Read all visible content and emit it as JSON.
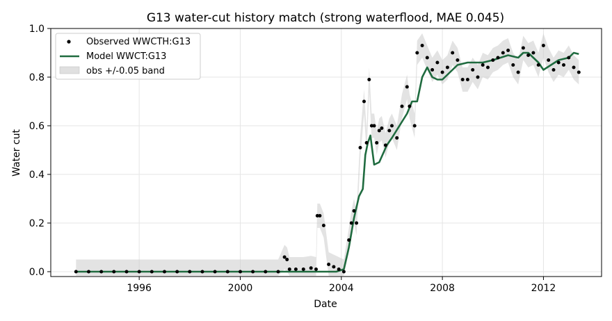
{
  "chart_data": {
    "type": "line",
    "title": "G13  water-cut history match  (strong waterflood, MAE 0.045)",
    "xlabel": "Date",
    "ylabel": "Water cut",
    "xlim": [
      1992.5,
      2014.3
    ],
    "ylim": [
      -0.02,
      1.0
    ],
    "x_ticks": [
      "1996",
      "2000",
      "2004",
      "2008",
      "2012"
    ],
    "y_ticks": [
      "0.0",
      "0.2",
      "0.4",
      "0.6",
      "0.8",
      "1.0"
    ],
    "grid": true,
    "legend": {
      "placement": "top-left",
      "entries": [
        "Observed WWCTH:G13",
        "Model WWCT:G13",
        "obs +/-0.05 band"
      ]
    },
    "colors": {
      "observed": "#000000",
      "model": "#1f6b3f",
      "band": "#cccccc"
    },
    "band_halfwidth": 0.05,
    "series": [
      {
        "name": "Observed WWCTH:G13",
        "style": "scatter",
        "x": [
          1993.5,
          1994.0,
          1994.5,
          1995.0,
          1995.5,
          1996.0,
          1996.5,
          1997.0,
          1997.5,
          1998.0,
          1998.5,
          1999.0,
          1999.5,
          2000.0,
          2000.5,
          2001.0,
          2001.5,
          2001.75,
          2001.85,
          2001.95,
          2002.2,
          2002.5,
          2002.8,
          2003.0,
          2003.05,
          2003.15,
          2003.3,
          2003.5,
          2003.7,
          2003.9,
          2004.1,
          2004.3,
          2004.4,
          2004.5,
          2004.6,
          2004.75,
          2004.9,
          2005.0,
          2005.1,
          2005.2,
          2005.3,
          2005.4,
          2005.5,
          2005.6,
          2005.75,
          2005.9,
          2006.0,
          2006.2,
          2006.4,
          2006.6,
          2006.7,
          2006.9,
          2007.0,
          2007.2,
          2007.4,
          2007.6,
          2007.8,
          2008.0,
          2008.2,
          2008.4,
          2008.6,
          2008.8,
          2009.0,
          2009.2,
          2009.4,
          2009.6,
          2009.8,
          2010.0,
          2010.2,
          2010.4,
          2010.6,
          2010.8,
          2011.0,
          2011.2,
          2011.4,
          2011.6,
          2011.8,
          2012.0,
          2012.2,
          2012.4,
          2012.6,
          2012.8,
          2013.0,
          2013.2,
          2013.4
        ],
        "y": [
          0.0,
          0.0,
          0.0,
          0.0,
          0.0,
          0.0,
          0.0,
          0.0,
          0.0,
          0.0,
          0.0,
          0.0,
          0.0,
          0.0,
          0.0,
          0.0,
          0.0,
          0.06,
          0.05,
          0.01,
          0.01,
          0.01,
          0.015,
          0.01,
          0.23,
          0.23,
          0.19,
          0.03,
          0.02,
          0.01,
          0.0,
          0.13,
          0.2,
          0.25,
          0.2,
          0.51,
          0.7,
          0.53,
          0.79,
          0.6,
          0.6,
          0.53,
          0.58,
          0.59,
          0.52,
          0.58,
          0.6,
          0.55,
          0.68,
          0.76,
          0.68,
          0.6,
          0.9,
          0.93,
          0.88,
          0.83,
          0.86,
          0.82,
          0.84,
          0.9,
          0.87,
          0.79,
          0.79,
          0.83,
          0.8,
          0.85,
          0.84,
          0.87,
          0.88,
          0.9,
          0.91,
          0.85,
          0.82,
          0.92,
          0.89,
          0.9,
          0.85,
          0.93,
          0.87,
          0.83,
          0.86,
          0.85,
          0.88,
          0.84,
          0.82
        ]
      },
      {
        "name": "Model WWCT:G13",
        "style": "line",
        "x": [
          1993.5,
          2001.5,
          2003.8,
          2004.1,
          2004.3,
          2004.5,
          2004.7,
          2004.85,
          2004.95,
          2005.05,
          2005.15,
          2005.3,
          2005.5,
          2005.8,
          2006.0,
          2006.3,
          2006.6,
          2006.8,
          2007.0,
          2007.2,
          2007.4,
          2007.6,
          2007.8,
          2008.0,
          2008.3,
          2008.6,
          2009.0,
          2009.3,
          2009.6,
          2010.0,
          2010.3,
          2010.6,
          2011.0,
          2011.2,
          2011.4,
          2011.6,
          2011.8,
          2012.0,
          2012.3,
          2012.6,
          2013.0,
          2013.2,
          2013.4
        ],
        "y": [
          0.0,
          0.0,
          0.0,
          0.01,
          0.1,
          0.22,
          0.31,
          0.34,
          0.48,
          0.53,
          0.56,
          0.44,
          0.45,
          0.52,
          0.55,
          0.6,
          0.65,
          0.7,
          0.7,
          0.8,
          0.84,
          0.8,
          0.79,
          0.79,
          0.82,
          0.85,
          0.86,
          0.86,
          0.86,
          0.87,
          0.88,
          0.89,
          0.88,
          0.9,
          0.9,
          0.88,
          0.86,
          0.83,
          0.85,
          0.87,
          0.88,
          0.9,
          0.895
        ]
      }
    ]
  }
}
